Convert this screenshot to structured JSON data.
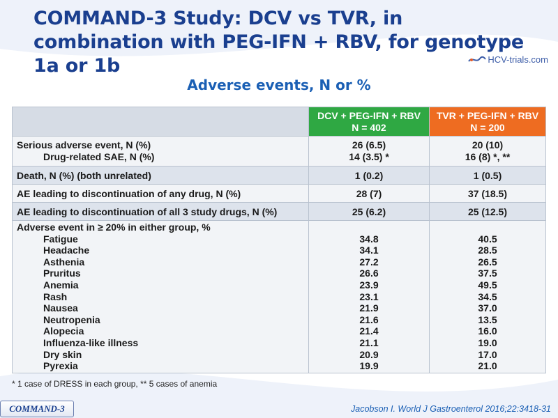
{
  "title": "COMMAND-3 Study: DCV vs TVR, in combination with PEG-IFN + RBV, for genotype 1a or 1b",
  "logo": {
    "text": "HCV-trials.com",
    "icon": "hcv-trials-logo-icon"
  },
  "subtitle": "Adverse events, N or %",
  "colors": {
    "title": "#1a3f8f",
    "dcv_header": "#2fa843",
    "tvr_header": "#ee6c21",
    "subtitle": "#1a5fb4"
  },
  "table": {
    "headers": {
      "dcv": [
        "DCV + PEG-IFN + RBV",
        "N = 402"
      ],
      "tvr": [
        "TVR + PEG-IFN + RBV",
        "N = 200"
      ]
    },
    "sae": {
      "label": "Serious adverse event, N (%)",
      "sublabel": "Drug-related SAE, N (%)",
      "dcv": "26 (6.5)",
      "dcv_sub": "14 (3.5) *",
      "tvr": "20 (10)",
      "tvr_sub": "16 (8) *, **"
    },
    "death": {
      "label": "Death, N (%) (both unrelated)",
      "dcv": "1 (0.2)",
      "tvr": "1 (0.5)"
    },
    "disc_any": {
      "label": "AE leading to discontinuation of any drug, N (%)",
      "dcv": "28 (7)",
      "tvr": "37 (18.5)"
    },
    "disc_all": {
      "label": "AE leading to discontinuation of all 3 study drugs, N (%)",
      "dcv": "25 (6.2)",
      "tvr": "25 (12.5)"
    },
    "ae_header": "Adverse event in ≥ 20% in either group, %",
    "ae_items": [
      {
        "label": "Fatigue",
        "dcv": "34.8",
        "tvr": "40.5"
      },
      {
        "label": "Headache",
        "dcv": "34.1",
        "tvr": "28.5"
      },
      {
        "label": "Asthenia",
        "dcv": "27.2",
        "tvr": "26.5"
      },
      {
        "label": "Pruritus",
        "dcv": "26.6",
        "tvr": "37.5"
      },
      {
        "label": "Anemia",
        "dcv": "23.9",
        "tvr": "49.5"
      },
      {
        "label": "Rash",
        "dcv": "23.1",
        "tvr": "34.5"
      },
      {
        "label": "Nausea",
        "dcv": "21.9",
        "tvr": "37.0"
      },
      {
        "label": "Neutropenia",
        "dcv": "21.6",
        "tvr": "13.5"
      },
      {
        "label": "Alopecia",
        "dcv": "21.4",
        "tvr": "16.0"
      },
      {
        "label": "Influenza-like illness",
        "dcv": "21.1",
        "tvr": "19.0"
      },
      {
        "label": "Dry skin",
        "dcv": "20.9",
        "tvr": "17.0"
      },
      {
        "label": "Pyrexia",
        "dcv": "19.9",
        "tvr": "21.0"
      }
    ]
  },
  "footnote": "* 1 case of DRESS in each group, ** 5 cases of anemia",
  "tag": "COMMAND-3",
  "citation": "Jacobson I. World J Gastroenterol 2016;22:3418-31"
}
